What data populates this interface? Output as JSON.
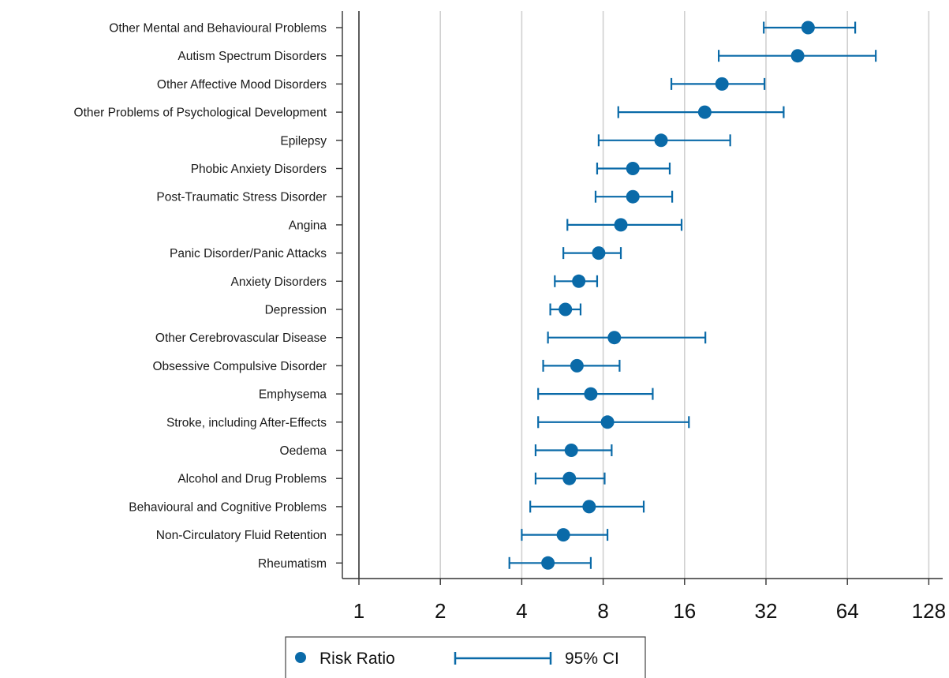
{
  "chart_data": {
    "type": "scatter",
    "subtype": "forest-plot",
    "x_scale": "log2",
    "xlim": [
      1,
      128
    ],
    "x_ticks": [
      1,
      2,
      4,
      8,
      16,
      32,
      64,
      128
    ],
    "x_tick_labels": [
      "1",
      "2",
      "4",
      "8",
      "16",
      "32",
      "64",
      "128"
    ],
    "reference_line": 1,
    "grid": "vertical",
    "colors": {
      "marker": "#0a6aa8",
      "grid": "#d0d0d0",
      "axis": "#333333"
    },
    "categories": [
      "Other Mental and Behavioural Problems",
      "Autism Spectrum Disorders",
      "Other Affective Mood Disorders",
      "Other Problems of Psychological Development",
      "Epilepsy",
      "Phobic Anxiety Disorders",
      "Post-Traumatic Stress Disorder",
      "Angina",
      "Panic Disorder/Panic Attacks",
      "Anxiety Disorders",
      "Depression",
      "Other Cerebrovascular Disease",
      "Obsessive Compulsive Disorder",
      "Emphysema",
      "Stroke, including After-Effects",
      "Oedema",
      "Alcohol and Drug Problems",
      "Behavioural and Cognitive Problems",
      "Non-Circulatory Fluid Retention",
      "Rheumatism"
    ],
    "series": [
      {
        "name": "Risk Ratio",
        "values": [
          45.8,
          41.9,
          22.0,
          19.0,
          13.1,
          10.3,
          10.3,
          9.3,
          7.7,
          6.5,
          5.8,
          8.8,
          6.4,
          7.2,
          8.3,
          6.1,
          6.0,
          7.1,
          5.7,
          5.0
        ]
      },
      {
        "name": "95% CI",
        "lower": [
          31.4,
          21.4,
          14.3,
          9.1,
          7.7,
          7.6,
          7.5,
          5.9,
          5.7,
          5.3,
          5.1,
          5.0,
          4.8,
          4.6,
          4.6,
          4.5,
          4.5,
          4.3,
          4.0,
          3.6
        ],
        "upper": [
          68.4,
          81.5,
          31.6,
          37.2,
          23.6,
          14.1,
          14.4,
          15.6,
          9.3,
          7.6,
          6.6,
          19.1,
          9.2,
          12.2,
          16.6,
          8.6,
          8.1,
          11.3,
          8.3,
          7.2
        ]
      }
    ],
    "legend": {
      "position": "bottom-center",
      "entries": [
        "Risk Ratio",
        "95% CI"
      ]
    }
  }
}
